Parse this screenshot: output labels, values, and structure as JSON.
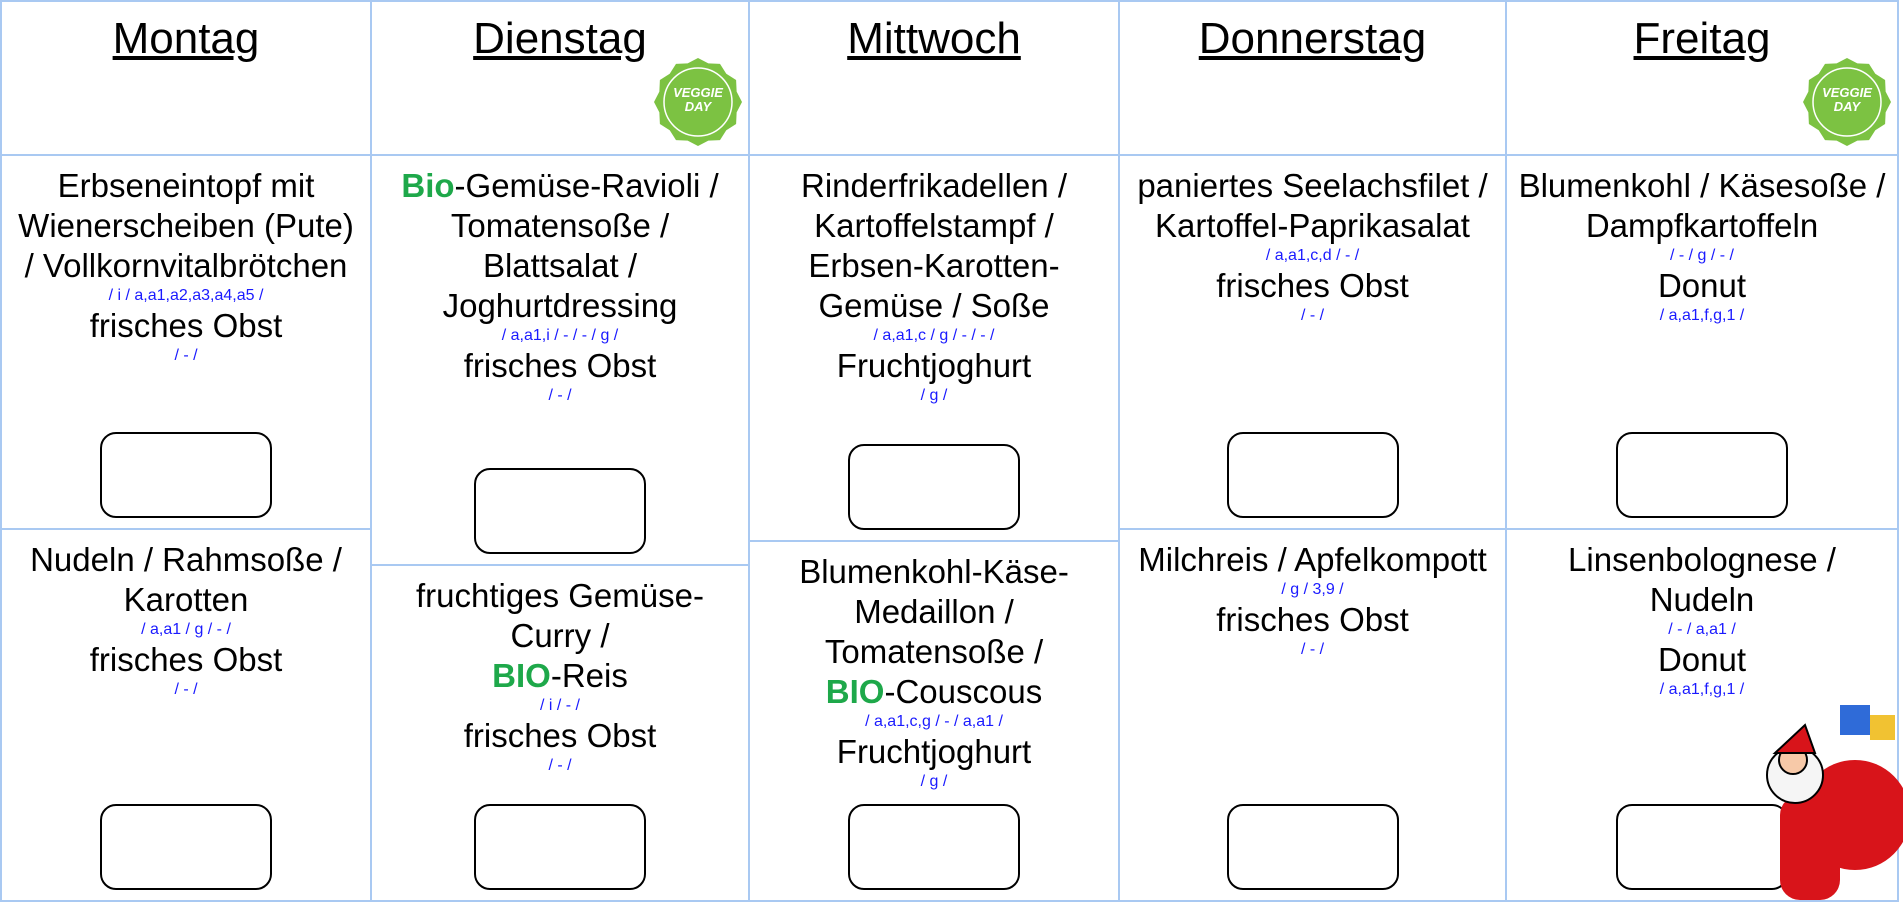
{
  "days": [
    {
      "name": "Montag",
      "meals": [
        {
          "items": [
            {
              "kind": "dish",
              "text": "Erbseneintopf mit Wienerscheiben (Pute) / Vollkornvitalbrötchen"
            },
            {
              "kind": "allergen",
              "text": "/ i / a,a1,a2,a3,a4,a5 /"
            },
            {
              "kind": "dish",
              "text": "frisches Obst"
            },
            {
              "kind": "allergen",
              "text": "/ - /"
            }
          ]
        },
        {
          "items": [
            {
              "kind": "dish",
              "text": "Nudeln / Rahmsoße / Karotten"
            },
            {
              "kind": "allergen",
              "text": "/ a,a1 / g / - /"
            },
            {
              "kind": "dish",
              "text": "frisches Obst"
            },
            {
              "kind": "allergen",
              "text": "/ - /"
            }
          ]
        }
      ]
    },
    {
      "name": "Dienstag",
      "badge": "VEGGIE DAY",
      "meals": [
        {
          "items": [
            {
              "kind": "dish",
              "prefix": "Bio",
              "text": "-Gemüse-Ravioli / Tomatensoße / Blattsalat / Joghurtdressing"
            },
            {
              "kind": "allergen",
              "text": "/ a,a1,i / - / - / g /"
            },
            {
              "kind": "dish",
              "text": "frisches Obst"
            },
            {
              "kind": "allergen",
              "text": "/ - /"
            }
          ]
        },
        {
          "items": [
            {
              "kind": "dish",
              "text": "fruchtiges Gemüse-Curry /"
            },
            {
              "kind": "dish",
              "prefix": "BIO",
              "text": "-Reis"
            },
            {
              "kind": "allergen",
              "text": "/ i / - /"
            },
            {
              "kind": "dish",
              "text": "frisches Obst"
            },
            {
              "kind": "allergen",
              "text": "/ - /"
            }
          ]
        }
      ]
    },
    {
      "name": "Mittwoch",
      "meals": [
        {
          "items": [
            {
              "kind": "dish",
              "text": "Rinderfrikadellen / Kartoffelstampf / Erbsen-Karotten-Gemüse / Soße"
            },
            {
              "kind": "allergen",
              "text": "/ a,a1,c / g / - / - /"
            },
            {
              "kind": "dish",
              "text": "Fruchtjoghurt"
            },
            {
              "kind": "allergen",
              "text": "/ g /"
            }
          ]
        },
        {
          "items": [
            {
              "kind": "dish",
              "text": "Blumenkohl-Käse-Medaillon / Tomatensoße /"
            },
            {
              "kind": "dish",
              "prefix": "BIO",
              "text": "-Couscous"
            },
            {
              "kind": "allergen",
              "text": "/ a,a1,c,g / - / a,a1 /"
            },
            {
              "kind": "dish",
              "text": "Fruchtjoghurt"
            },
            {
              "kind": "allergen",
              "text": "/ g /"
            }
          ]
        }
      ]
    },
    {
      "name": "Donnerstag",
      "meals": [
        {
          "items": [
            {
              "kind": "dish",
              "text": "paniertes Seelachsfilet / Kartoffel-Paprikasalat"
            },
            {
              "kind": "allergen",
              "text": "/ a,a1,c,d / - /"
            },
            {
              "kind": "dish",
              "text": "frisches Obst"
            },
            {
              "kind": "allergen",
              "text": "/ - /"
            }
          ]
        },
        {
          "items": [
            {
              "kind": "dish",
              "text": "Milchreis / Apfelkompott"
            },
            {
              "kind": "allergen",
              "text": "/ g / 3,9 /"
            },
            {
              "kind": "dish",
              "text": "frisches Obst"
            },
            {
              "kind": "allergen",
              "text": "/ - /"
            }
          ]
        }
      ]
    },
    {
      "name": "Freitag",
      "badge": "VEGGIE DAY",
      "meals": [
        {
          "items": [
            {
              "kind": "dish",
              "text": "Blumenkohl / Käsesoße / Dampfkartoffeln"
            },
            {
              "kind": "allergen",
              "text": "/ - / g / - /"
            },
            {
              "kind": "dish",
              "text": "Donut"
            },
            {
              "kind": "allergen",
              "text": "/ a,a1,f,g,1 /"
            }
          ]
        },
        {
          "items": [
            {
              "kind": "dish",
              "text": "Linsenbolognese / Nudeln"
            },
            {
              "kind": "allergen",
              "text": "/ - / a,a1 /"
            },
            {
              "kind": "dish",
              "text": "Donut"
            },
            {
              "kind": "allergen",
              "text": "/ a,a1,f,g,1 /"
            }
          ]
        }
      ]
    }
  ]
}
